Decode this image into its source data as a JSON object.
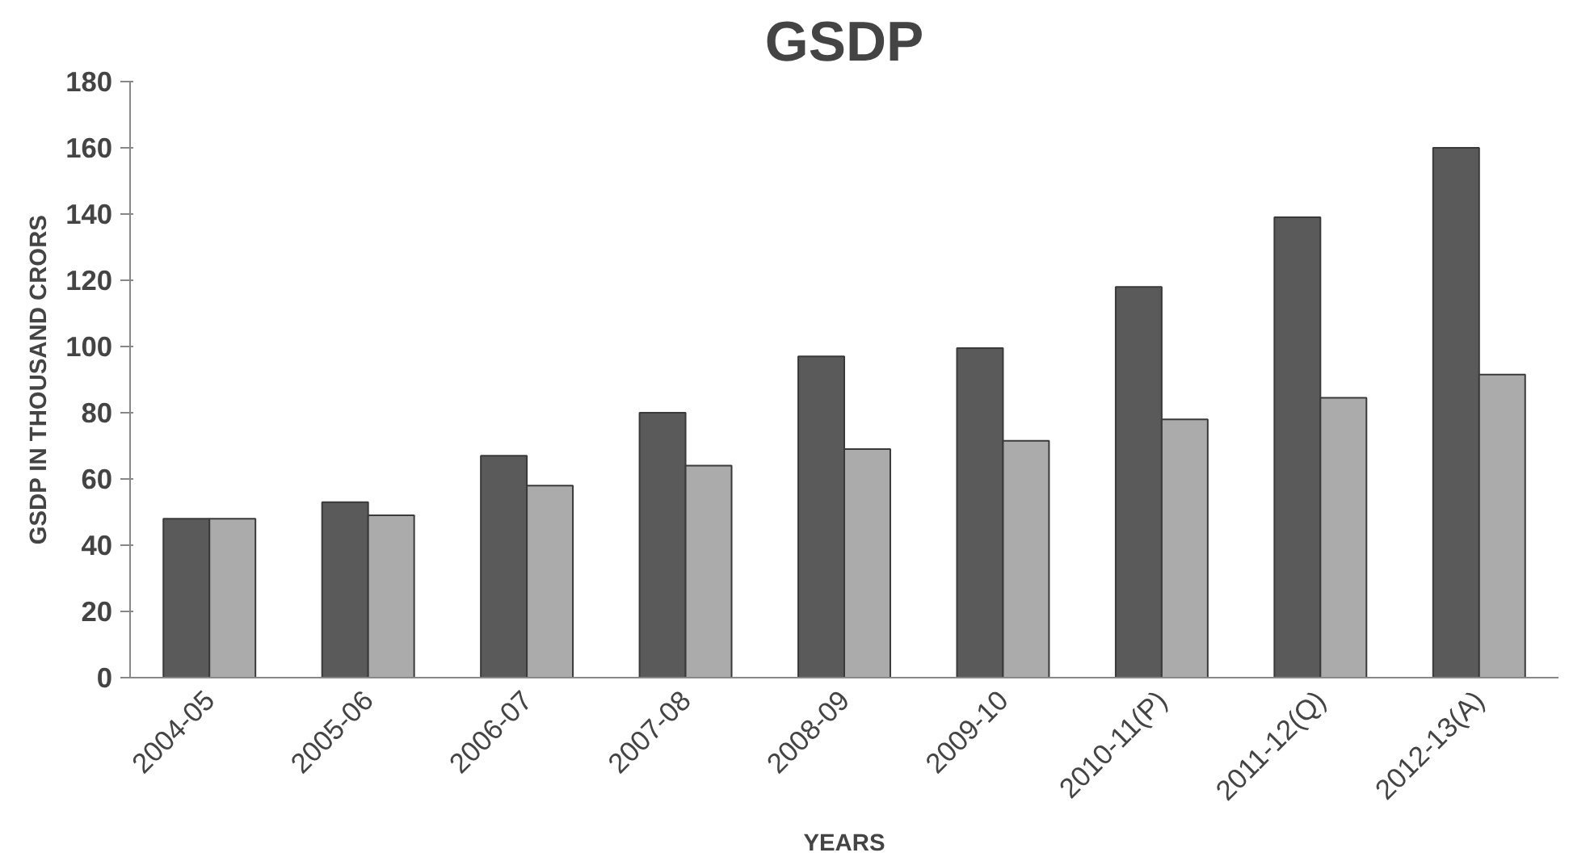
{
  "chart_data": {
    "type": "bar",
    "title": "GSDP",
    "xlabel": "YEARS",
    "ylabel": "GSDP IN THOUSAND CRORS",
    "categories": [
      "2004-05",
      "2005-06",
      "2006-07",
      "2007-08",
      "2008-09",
      "2009-10",
      "2010-11(P)",
      "2011-12(Q)",
      "2012-13(A)"
    ],
    "series": [
      {
        "color": "#5a5a5a",
        "values": [
          48,
          53,
          67,
          80,
          97,
          99.5,
          118,
          139,
          160
        ]
      },
      {
        "color": "#ababab",
        "values": [
          48,
          49,
          58,
          64,
          69,
          71.5,
          78,
          84.5,
          91.5
        ]
      }
    ],
    "ylim": [
      0,
      180
    ],
    "yticks": [
      0,
      20,
      40,
      60,
      80,
      100,
      120,
      140,
      160,
      180
    ],
    "grid": false
  }
}
